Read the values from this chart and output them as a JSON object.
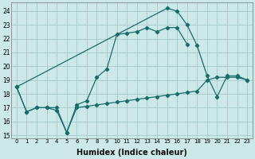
{
  "xlabel": "Humidex (Indice chaleur)",
  "bg_color": "#cce8e8",
  "grid_color": "#aacece",
  "line_color": "#1a6b6b",
  "xlim": [
    -0.5,
    23.5
  ],
  "ylim": [
    14.8,
    24.6
  ],
  "yticks": [
    15,
    16,
    17,
    18,
    19,
    20,
    21,
    22,
    23,
    24
  ],
  "xticks": [
    0,
    1,
    2,
    3,
    4,
    5,
    6,
    7,
    8,
    9,
    10,
    11,
    12,
    13,
    14,
    15,
    16,
    17,
    18,
    19,
    20,
    21,
    22,
    23
  ],
  "series": [
    {
      "x": [
        0,
        1,
        2,
        3,
        4,
        5,
        6,
        7,
        8,
        9,
        10,
        11,
        12,
        13,
        14,
        15,
        16,
        17,
        18,
        19,
        20,
        21,
        22,
        23
      ],
      "y": [
        18.5,
        16.7,
        17.0,
        17.0,
        17.0,
        15.2,
        17.0,
        17.1,
        17.2,
        17.3,
        17.4,
        17.5,
        17.6,
        17.7,
        17.8,
        17.9,
        18.0,
        18.1,
        18.2,
        19.0,
        19.2,
        19.2,
        19.2,
        19.0
      ]
    },
    {
      "x": [
        0,
        1,
        2,
        3,
        4,
        5,
        6,
        7,
        8,
        9,
        10,
        11,
        12,
        13,
        14,
        15,
        16,
        17,
        18,
        19,
        20,
        21,
        22,
        23
      ],
      "y": [
        18.5,
        16.7,
        17.0,
        17.0,
        16.8,
        15.2,
        17.2,
        17.5,
        19.2,
        19.8,
        22.3,
        22.4,
        22.5,
        22.8,
        22.5,
        22.8,
        22.8,
        21.6,
        null,
        null,
        null,
        null,
        null,
        null
      ]
    },
    {
      "x": [
        0,
        15,
        16,
        17,
        18,
        19,
        20,
        21,
        22,
        23
      ],
      "y": [
        18.5,
        24.2,
        24.0,
        23.0,
        21.5,
        19.3,
        17.8,
        19.3,
        19.3,
        19.0
      ]
    }
  ]
}
